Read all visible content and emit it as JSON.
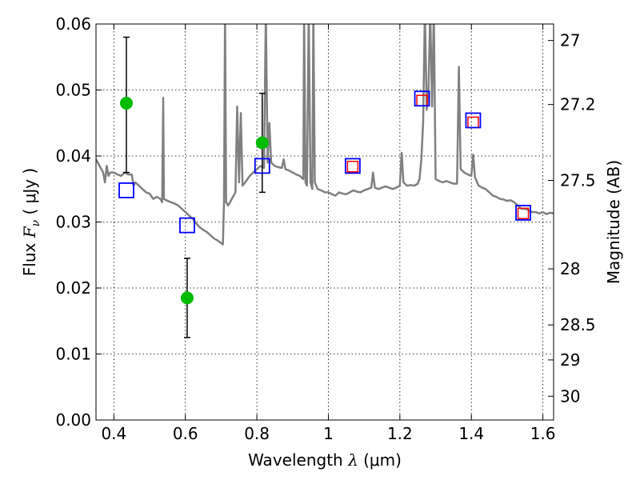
{
  "chart_data": {
    "type": "scatter",
    "title": "",
    "xlabel_text": "Wavelength  ",
    "xlabel_symbol": "λ",
    "xlabel_unit": " (μm)",
    "ylabel_text": "Flux  ",
    "ylabel_symbol": "F",
    "ylabel_subscript": "ν",
    "ylabel_unit": "  ( μJy )",
    "y2label": "Magnitude (AB)",
    "xlim": [
      0.35,
      1.63
    ],
    "ylim": [
      0.0,
      0.06
    ],
    "xticks": [
      0.4,
      0.6,
      0.8,
      1.0,
      1.2,
      1.4,
      1.6
    ],
    "xtick_labels": [
      "0.4",
      "0.6",
      "0.8",
      "1",
      "1.2",
      "1.4",
      "1.6"
    ],
    "yticks": [
      0.0,
      0.01,
      0.02,
      0.03,
      0.04,
      0.05,
      0.06
    ],
    "ytick_labels": [
      "0.00",
      "0.01",
      "0.02",
      "0.03",
      "0.04",
      "0.05",
      "0.06"
    ],
    "y2ticks": [
      {
        "label": "27",
        "flux": 0.0575
      },
      {
        "label": "27.2",
        "flux": 0.0478
      },
      {
        "label": "27.5",
        "flux": 0.0363
      },
      {
        "label": "28",
        "flux": 0.0229
      },
      {
        "label": "28.5",
        "flux": 0.0144
      },
      {
        "label": "29",
        "flux": 0.0091
      },
      {
        "label": "30",
        "flux": 0.0036
      }
    ],
    "grid": true,
    "series": [
      {
        "kind": "spectrum",
        "color": "#808080",
        "points": [
          [
            0.35,
            0.0395
          ],
          [
            0.36,
            0.0385
          ],
          [
            0.37,
            0.0375
          ],
          [
            0.375,
            0.036
          ],
          [
            0.38,
            0.0385
          ],
          [
            0.385,
            0.037
          ],
          [
            0.39,
            0.0375
          ],
          [
            0.4,
            0.0375
          ],
          [
            0.41,
            0.0372
          ],
          [
            0.42,
            0.037
          ],
          [
            0.43,
            0.0375
          ],
          [
            0.44,
            0.0372
          ],
          [
            0.45,
            0.0372
          ],
          [
            0.455,
            0.0355
          ],
          [
            0.46,
            0.036
          ],
          [
            0.47,
            0.0355
          ],
          [
            0.48,
            0.035
          ],
          [
            0.49,
            0.0345
          ],
          [
            0.5,
            0.0343
          ],
          [
            0.51,
            0.0335
          ],
          [
            0.52,
            0.0338
          ],
          [
            0.53,
            0.0335
          ],
          [
            0.535,
            0.033
          ],
          [
            0.538,
            0.0488
          ],
          [
            0.54,
            0.0335
          ],
          [
            0.55,
            0.0332
          ],
          [
            0.56,
            0.033
          ],
          [
            0.57,
            0.0328
          ],
          [
            0.58,
            0.0325
          ],
          [
            0.59,
            0.032
          ],
          [
            0.6,
            0.0315
          ],
          [
            0.61,
            0.031
          ],
          [
            0.62,
            0.0305
          ],
          [
            0.63,
            0.0298
          ],
          [
            0.64,
            0.0292
          ],
          [
            0.65,
            0.0288
          ],
          [
            0.66,
            0.0285
          ],
          [
            0.67,
            0.028
          ],
          [
            0.68,
            0.0275
          ],
          [
            0.69,
            0.0272
          ],
          [
            0.7,
            0.0268
          ],
          [
            0.705,
            0.0266
          ],
          [
            0.708,
            0.033
          ],
          [
            0.711,
            0.062
          ],
          [
            0.714,
            0.033
          ],
          [
            0.72,
            0.0325
          ],
          [
            0.73,
            0.0335
          ],
          [
            0.74,
            0.0345
          ],
          [
            0.745,
            0.0475
          ],
          [
            0.75,
            0.036
          ],
          [
            0.755,
            0.0465
          ],
          [
            0.76,
            0.0355
          ],
          [
            0.77,
            0.0362
          ],
          [
            0.78,
            0.037
          ],
          [
            0.79,
            0.0375
          ],
          [
            0.8,
            0.038
          ],
          [
            0.81,
            0.0385
          ],
          [
            0.82,
            0.0382
          ],
          [
            0.825,
            0.062
          ],
          [
            0.83,
            0.039
          ],
          [
            0.835,
            0.045
          ],
          [
            0.84,
            0.039
          ],
          [
            0.85,
            0.0385
          ],
          [
            0.86,
            0.0383
          ],
          [
            0.87,
            0.0382
          ],
          [
            0.875,
            0.0395
          ],
          [
            0.88,
            0.038
          ],
          [
            0.89,
            0.0378
          ],
          [
            0.9,
            0.0375
          ],
          [
            0.91,
            0.0372
          ],
          [
            0.92,
            0.037
          ],
          [
            0.93,
            0.0365
          ],
          [
            0.932,
            0.062
          ],
          [
            0.936,
            0.036
          ],
          [
            0.94,
            0.0355
          ],
          [
            0.945,
            0.062
          ],
          [
            0.95,
            0.036
          ],
          [
            0.955,
            0.035
          ],
          [
            0.958,
            0.062
          ],
          [
            0.962,
            0.036
          ],
          [
            0.97,
            0.035
          ],
          [
            0.98,
            0.0348
          ],
          [
            0.99,
            0.0345
          ],
          [
            1.0,
            0.0345
          ],
          [
            1.01,
            0.0342
          ],
          [
            1.02,
            0.034
          ],
          [
            1.03,
            0.0345
          ],
          [
            1.04,
            0.0343
          ],
          [
            1.05,
            0.0342
          ],
          [
            1.06,
            0.0345
          ],
          [
            1.07,
            0.0348
          ],
          [
            1.08,
            0.0346
          ],
          [
            1.09,
            0.0345
          ],
          [
            1.1,
            0.0348
          ],
          [
            1.11,
            0.035
          ],
          [
            1.12,
            0.0352
          ],
          [
            1.125,
            0.0375
          ],
          [
            1.13,
            0.0352
          ],
          [
            1.14,
            0.035
          ],
          [
            1.15,
            0.0352
          ],
          [
            1.16,
            0.0354
          ],
          [
            1.17,
            0.0352
          ],
          [
            1.18,
            0.035
          ],
          [
            1.19,
            0.0352
          ],
          [
            1.2,
            0.0355
          ],
          [
            1.205,
            0.0405
          ],
          [
            1.21,
            0.036
          ],
          [
            1.22,
            0.0355
          ],
          [
            1.23,
            0.0356
          ],
          [
            1.24,
            0.0355
          ],
          [
            1.25,
            0.0358
          ],
          [
            1.255,
            0.0365
          ],
          [
            1.26,
            0.0395
          ],
          [
            1.265,
            0.045
          ],
          [
            1.27,
            0.062
          ],
          [
            1.275,
            0.047
          ],
          [
            1.28,
            0.05
          ],
          [
            1.285,
            0.062
          ],
          [
            1.29,
            0.0475
          ],
          [
            1.295,
            0.062
          ],
          [
            1.3,
            0.0365
          ],
          [
            1.31,
            0.0362
          ],
          [
            1.32,
            0.036
          ],
          [
            1.33,
            0.0362
          ],
          [
            1.34,
            0.036
          ],
          [
            1.35,
            0.0358
          ],
          [
            1.36,
            0.0358
          ],
          [
            1.365,
            0.0535
          ],
          [
            1.37,
            0.038
          ],
          [
            1.38,
            0.0375
          ],
          [
            1.39,
            0.0372
          ],
          [
            1.4,
            0.037
          ],
          [
            1.405,
            0.0402
          ],
          [
            1.41,
            0.0368
          ],
          [
            1.42,
            0.0355
          ],
          [
            1.43,
            0.0352
          ],
          [
            1.44,
            0.035
          ],
          [
            1.45,
            0.0345
          ],
          [
            1.46,
            0.034
          ],
          [
            1.47,
            0.0338
          ],
          [
            1.48,
            0.0335
          ],
          [
            1.49,
            0.0334
          ],
          [
            1.5,
            0.0332
          ],
          [
            1.51,
            0.0333
          ],
          [
            1.52,
            0.033
          ],
          [
            1.53,
            0.0325
          ],
          [
            1.54,
            0.032
          ],
          [
            1.55,
            0.032
          ],
          [
            1.56,
            0.0318
          ],
          [
            1.57,
            0.0315
          ],
          [
            1.58,
            0.0315
          ],
          [
            1.59,
            0.0313
          ],
          [
            1.6,
            0.0315
          ],
          [
            1.61,
            0.0312
          ],
          [
            1.62,
            0.0314
          ],
          [
            1.63,
            0.0313
          ]
        ]
      },
      {
        "kind": "observed",
        "color": "#00bb00",
        "points": [
          {
            "x": 0.435,
            "y": 0.048,
            "ylo": 0.0375,
            "yhi": 0.058
          },
          {
            "x": 0.605,
            "y": 0.0185,
            "ylo": 0.0125,
            "yhi": 0.0245
          },
          {
            "x": 0.815,
            "y": 0.042,
            "ylo": 0.0345,
            "yhi": 0.0495
          }
        ]
      },
      {
        "kind": "model-red",
        "color": "#ff0000",
        "points": [
          {
            "x": 1.068,
            "y": 0.0384
          },
          {
            "x": 1.262,
            "y": 0.0484
          },
          {
            "x": 1.405,
            "y": 0.0451
          },
          {
            "x": 1.545,
            "y": 0.0313
          }
        ]
      },
      {
        "kind": "model-blue",
        "color": "#0000ff",
        "points": [
          {
            "x": 0.435,
            "y": 0.0348
          },
          {
            "x": 0.605,
            "y": 0.0295
          },
          {
            "x": 0.815,
            "y": 0.0385
          },
          {
            "x": 1.068,
            "y": 0.0385
          },
          {
            "x": 1.262,
            "y": 0.0487
          },
          {
            "x": 1.405,
            "y": 0.0454
          },
          {
            "x": 1.545,
            "y": 0.0314
          }
        ]
      }
    ]
  }
}
